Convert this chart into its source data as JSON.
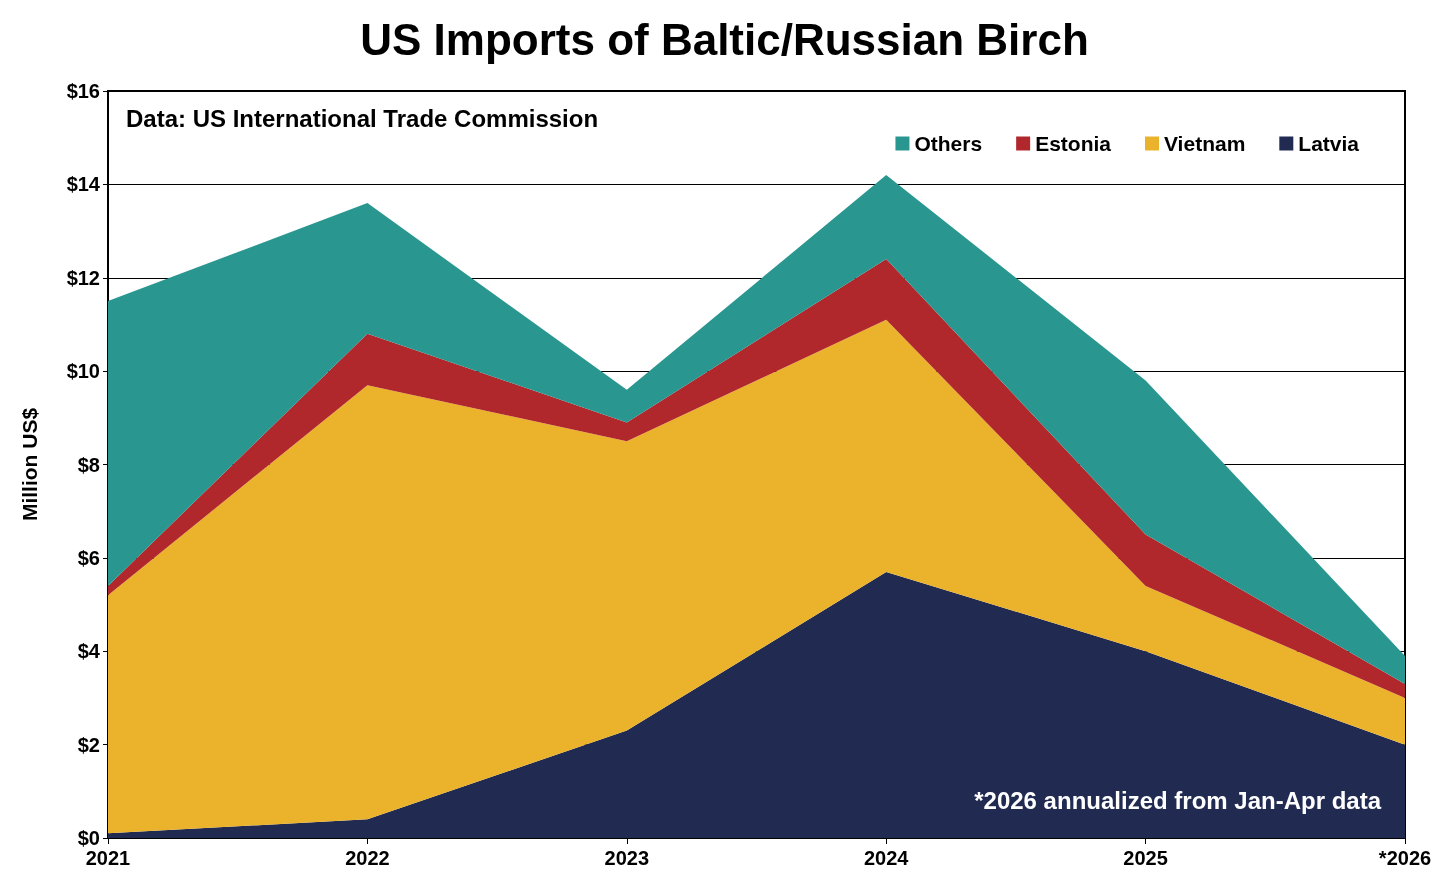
{
  "chart_data": {
    "type": "area",
    "title": "US Imports of Baltic/Russian Birch",
    "ylabel": "Million US$",
    "categories": [
      "2021",
      "2022",
      "2023",
      "2024",
      "2025",
      "*2026"
    ],
    "stacked": true,
    "series": [
      {
        "name": "Latvia",
        "color": "#212b52",
        "values": [
          0.1,
          0.4,
          2.3,
          5.7,
          4.0,
          2.0
        ]
      },
      {
        "name": "Vietnam",
        "color": "#ebb22c",
        "values": [
          5.1,
          9.3,
          6.2,
          5.4,
          1.4,
          1.0
        ]
      },
      {
        "name": "Estonia",
        "color": "#b0282c",
        "values": [
          0.2,
          1.1,
          0.4,
          1.3,
          1.1,
          0.3
        ]
      },
      {
        "name": "Others",
        "color": "#2a9690",
        "values": [
          6.1,
          2.8,
          0.7,
          1.8,
          3.3,
          0.6
        ]
      }
    ],
    "ylim": [
      0,
      16
    ],
    "yticks": [
      {
        "value": 0,
        "label": "$0"
      },
      {
        "value": 2,
        "label": "$2"
      },
      {
        "value": 4,
        "label": "$4"
      },
      {
        "value": 6,
        "label": "$6"
      },
      {
        "value": 8,
        "label": "$8"
      },
      {
        "value": 10,
        "label": "$10"
      },
      {
        "value": 12,
        "label": "$12"
      },
      {
        "value": 14,
        "label": "$14"
      },
      {
        "value": 16,
        "label": "$16"
      }
    ],
    "grid": "y",
    "legend": "top right",
    "annotations": [
      "Data: US International Trade Commission",
      "*2026 annualized from Jan-Apr data"
    ]
  }
}
